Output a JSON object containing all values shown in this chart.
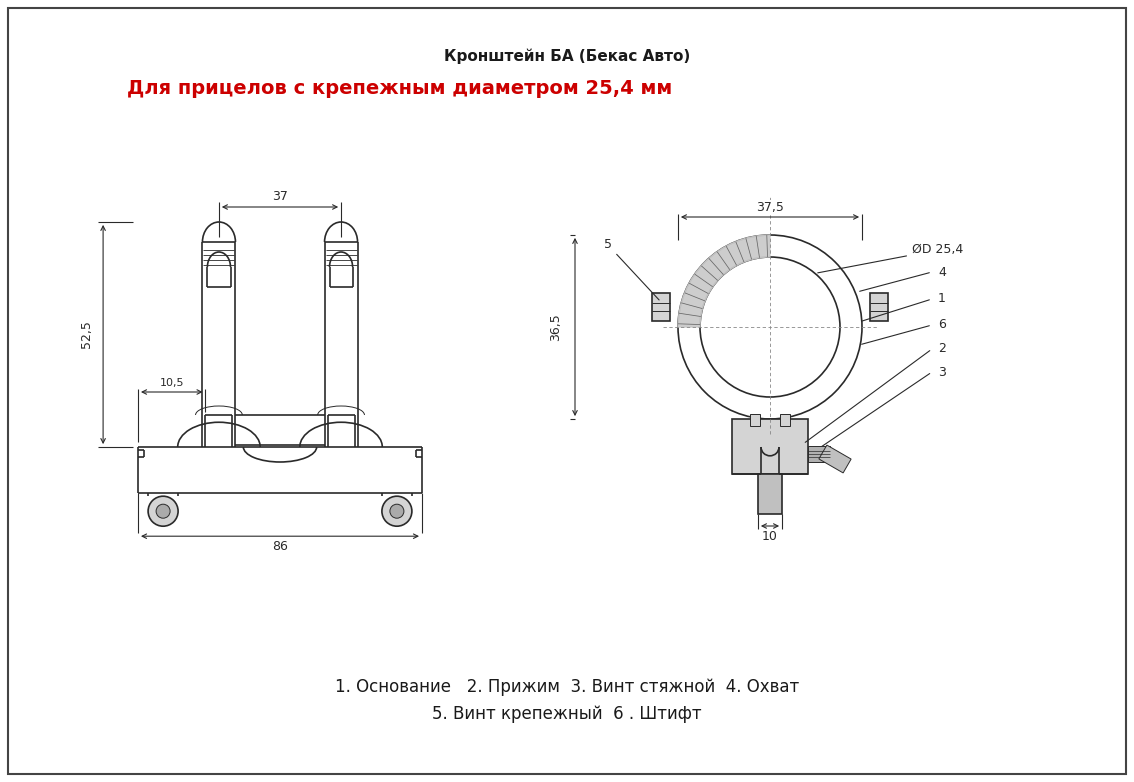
{
  "title1": "Кронштейн БА (Бекас Авто)",
  "title2": "Для прицелов с крепежным диаметром 25,4 мм",
  "legend_line1": "1. Основание   2. Прижим  3. Винт стяжной  4. Охват",
  "legend_line2": "5. Винт крепежный  6 . Штифт",
  "dim_37": "37",
  "dim_52_5": "52,5",
  "dim_10_5": "10,5",
  "dim_86": "86",
  "dim_37_5": "37,5",
  "dim_25_4": "ØD 25,4",
  "dim_36_5": "36,5",
  "dim_5": "5",
  "dim_10": "10",
  "label_4": "4",
  "label_1": "1",
  "label_6": "6",
  "label_2": "2",
  "label_3": "3",
  "bg_color": "#ffffff",
  "line_color": "#2a2a2a",
  "dim_color": "#2a2a2a",
  "gray_fill": "#d4d4d4",
  "gray_medium": "#b8b8b8",
  "gray_dark": "#909090"
}
